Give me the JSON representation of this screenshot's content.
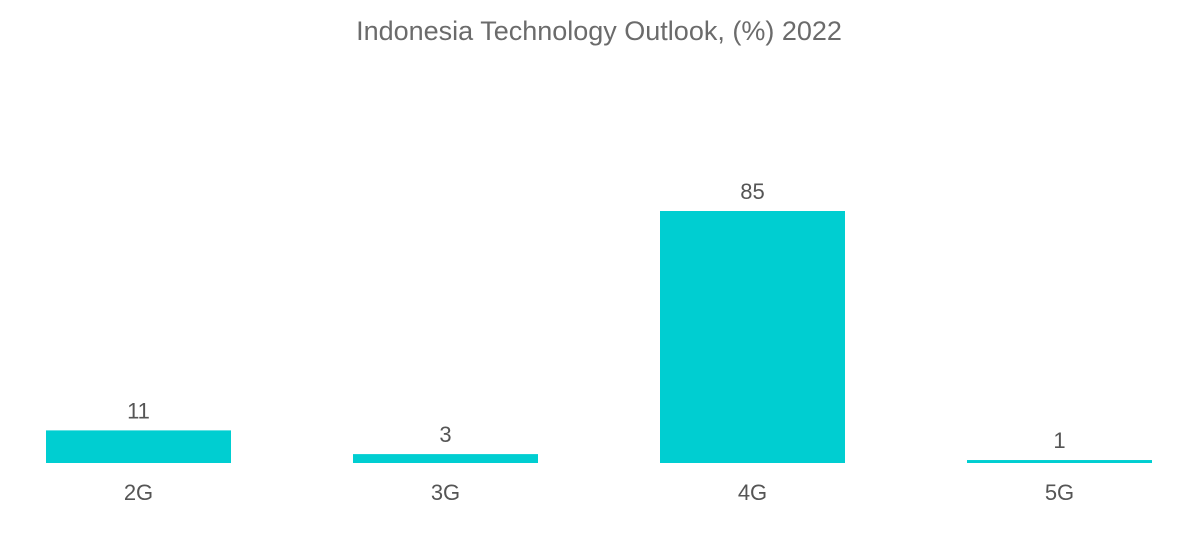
{
  "chart_data": {
    "type": "bar",
    "title": "Indonesia Technology Outlook, (%) 2022",
    "categories": [
      "2G",
      "3G",
      "4G",
      "5G"
    ],
    "values": [
      11,
      3,
      85,
      1
    ],
    "data_labels": [
      "11",
      "3",
      "85",
      "1"
    ],
    "xlabel": "",
    "ylabel": "",
    "ylim": [
      0,
      85
    ],
    "grid": false,
    "legend": "none",
    "colors": {
      "bar": "#00CED1",
      "title_text": "#6b6b6b",
      "label_text": "#555555"
    }
  }
}
